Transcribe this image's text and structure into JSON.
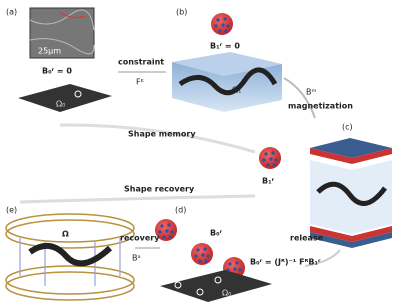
{
  "panels": {
    "a": {
      "label": "(a)",
      "scale_bar": "25μm",
      "field": "B₀ʳ = 0",
      "domain": "Ω₀"
    },
    "b": {
      "label": "(b)",
      "field": "B₁ʳ = 0",
      "domain": "Ω₁"
    },
    "c": {
      "label": "(c)",
      "field": "B₁ʳ"
    },
    "d": {
      "label": "(d)",
      "field": "B₀ʳ",
      "domain": "Ω₀"
    },
    "e": {
      "label": "(e)",
      "domain": "Ω"
    }
  },
  "arrows": {
    "constraint": {
      "label": "constraint",
      "symbol": "Fᴱ"
    },
    "magnetization": {
      "label": "magnetization",
      "symbol": "Bᵐ"
    },
    "shape_memory": {
      "label": "Shape memory"
    },
    "shape_recovery": {
      "label": "Shape recovery"
    },
    "release": {
      "label": "release",
      "formula": "B₀ʳ = (Jᴿ)⁻¹ FᴿB₁ʳ"
    },
    "recovery": {
      "label": "recovery",
      "symbol": "Bᵃ"
    }
  }
}
